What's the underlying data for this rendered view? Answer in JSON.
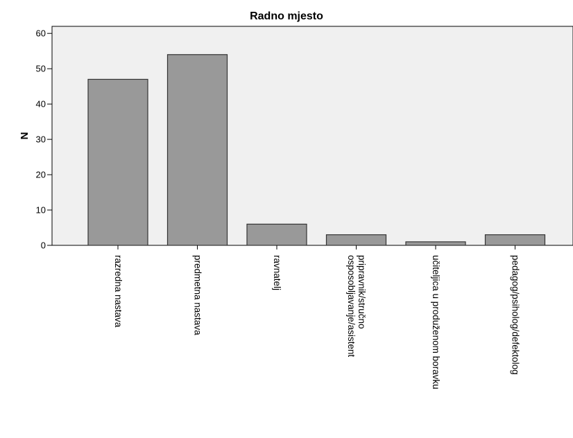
{
  "chart_data": {
    "type": "bar",
    "title": "Radno mjesto",
    "ylabel": "N",
    "xlabel": "",
    "ylim": [
      0,
      62
    ],
    "yticks": [
      0,
      10,
      20,
      30,
      40,
      50,
      60
    ],
    "categories": [
      [
        "razredna nastava"
      ],
      [
        "predmetna nastava"
      ],
      [
        "ravnatelj"
      ],
      [
        "pripravnik/stručno",
        "osposobljavanje/asistent"
      ],
      [
        "učiteljica u produženom boravku"
      ],
      [
        "pedagog/psiholog/defektolog"
      ]
    ],
    "values": [
      47,
      54,
      6,
      3,
      1,
      3
    ],
    "grid": false,
    "colors": {
      "bar": "#999999",
      "bar_stroke": "#333333",
      "plot_bg": "#f0f0f0"
    }
  }
}
